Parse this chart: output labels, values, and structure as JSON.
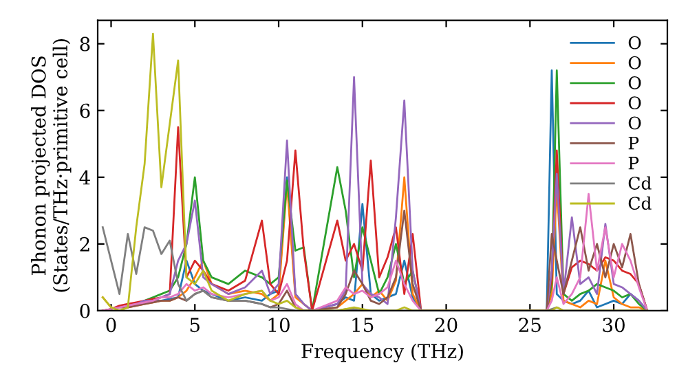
{
  "chart_data": {
    "type": "line",
    "xlabel": "Frequency (THz)",
    "ylabel": "Phonon projected DOS\n(States/THz·primitive cell)",
    "x": [
      -0.5,
      0,
      0.5,
      1,
      1.5,
      2,
      2.5,
      3,
      3.5,
      4,
      4.5,
      5,
      5.5,
      6,
      7,
      8,
      9,
      9.5,
      10,
      10.5,
      11,
      11.5,
      12,
      13.5,
      14,
      14.5,
      15,
      15.5,
      16,
      16.5,
      17,
      17.5,
      18,
      18.5,
      19,
      26,
      26.3,
      26.6,
      27,
      27.5,
      28,
      28.5,
      29,
      29.5,
      30,
      30.5,
      31,
      31.5,
      32
    ],
    "series": [
      {
        "name": "O",
        "color": "#1f77b4",
        "values": [
          null,
          null,
          null,
          null,
          null,
          0.25,
          0.3,
          0.3,
          0.35,
          0.4,
          1.5,
          0.8,
          0.6,
          0.5,
          0.3,
          0.4,
          0.3,
          0.5,
          0.6,
          4.0,
          0.5,
          0.2,
          0,
          0.2,
          0.4,
          0.3,
          3.2,
          0.5,
          0.3,
          0.4,
          0.5,
          1.5,
          0.4,
          0,
          0,
          0,
          7.2,
          0.5,
          0.3,
          0.2,
          0.3,
          0.6,
          0.1,
          0.2,
          0.3,
          0.2,
          0.5,
          0.3,
          0
        ]
      },
      {
        "name": "O",
        "color": "#ff7f0e",
        "values": [
          0.4,
          0.1,
          0,
          0.1,
          0.15,
          0.2,
          0.25,
          0.3,
          0.3,
          0.4,
          0.6,
          1.0,
          1.5,
          0.8,
          0.5,
          0.6,
          0.5,
          0.3,
          0.5,
          3.8,
          0.4,
          0.2,
          0,
          0.1,
          0.3,
          0.5,
          0.8,
          0.4,
          0.6,
          0.3,
          0.9,
          4.0,
          0.5,
          0,
          0,
          0,
          0.5,
          3.7,
          0.3,
          0.2,
          0.1,
          0.3,
          0.2,
          1.5,
          0.4,
          0.2,
          0.1,
          0.1,
          0
        ]
      },
      {
        "name": "O",
        "color": "#2ca02c",
        "values": [
          null,
          null,
          null,
          null,
          0.2,
          0.3,
          0.4,
          0.5,
          0.6,
          1.0,
          2.0,
          4.0,
          1.5,
          1.0,
          0.8,
          1.2,
          1.0,
          0.8,
          1.0,
          3.9,
          1.8,
          1.9,
          0,
          4.3,
          3.0,
          1.0,
          2.5,
          1.5,
          0.5,
          1.0,
          2.0,
          0.8,
          1.2,
          0,
          0,
          0,
          0.8,
          7.2,
          0.5,
          0.3,
          0.5,
          0.6,
          0.8,
          0.7,
          0.6,
          0.4,
          0.5,
          0.2,
          0
        ]
      },
      {
        "name": "O",
        "color": "#d62728",
        "values": [
          0,
          0.05,
          0.15,
          0.2,
          0.25,
          0.3,
          0.35,
          0.4,
          0.5,
          5.5,
          1.0,
          1.5,
          1.2,
          0.8,
          0.6,
          0.9,
          2.7,
          0.8,
          0.5,
          1.5,
          4.8,
          1.8,
          0,
          2.7,
          1.5,
          2.0,
          1.2,
          4.5,
          1.0,
          1.6,
          2.5,
          0.5,
          2.3,
          0,
          0,
          0,
          1.0,
          4.8,
          0.5,
          1.3,
          1.5,
          1.4,
          1.2,
          1.6,
          1.5,
          1.2,
          1.1,
          0.8,
          0
        ]
      },
      {
        "name": "O",
        "color": "#9467bd",
        "values": [
          null,
          null,
          null,
          0.15,
          0.2,
          0.3,
          0.3,
          0.4,
          0.5,
          1.5,
          2.0,
          3.3,
          1.0,
          0.8,
          0.5,
          0.7,
          1.2,
          0.5,
          0.8,
          5.1,
          0.5,
          0.2,
          0,
          0.2,
          0.6,
          7.0,
          0.8,
          0.5,
          0.4,
          0.2,
          2.8,
          6.3,
          1.2,
          0,
          0,
          0,
          1.2,
          4.1,
          0.5,
          2.8,
          0.8,
          1.0,
          0.5,
          2.6,
          0.8,
          0.7,
          0.5,
          0.3,
          0
        ]
      },
      {
        "name": "P",
        "color": "#8c564b",
        "values": [
          0,
          0.05,
          0.1,
          0.1,
          0.15,
          0.2,
          0.25,
          0.3,
          0.3,
          0.4,
          0.3,
          0.5,
          0.6,
          0.4,
          0.3,
          0.3,
          0.2,
          0.1,
          0.2,
          0.6,
          0.1,
          0,
          0,
          0.1,
          0.5,
          1.2,
          0.8,
          0.3,
          0.2,
          0.4,
          1.0,
          3.0,
          0.8,
          0,
          0,
          0,
          2.3,
          1.5,
          0.5,
          1.5,
          2.5,
          1.2,
          2.0,
          1.0,
          2.0,
          1.3,
          2.3,
          0.8,
          0
        ]
      },
      {
        "name": "P",
        "color": "#e377c2",
        "values": [
          0,
          0.05,
          0.1,
          0.15,
          0.2,
          0.25,
          0.3,
          0.4,
          0.4,
          0.5,
          0.8,
          0.6,
          0.7,
          0.5,
          0.4,
          0.5,
          0.6,
          0.3,
          0.4,
          0.8,
          0.2,
          0,
          0,
          0.3,
          0.7,
          0.5,
          0.6,
          0.4,
          0.5,
          0.7,
          1.5,
          0.8,
          0.3,
          0,
          0,
          0,
          0.3,
          1.0,
          0.2,
          0.5,
          1.0,
          3.5,
          1.2,
          2.5,
          1.0,
          2.0,
          1.5,
          0.7,
          0
        ]
      },
      {
        "name": "Cd",
        "color": "#7f7f7f",
        "values": [
          2.5,
          1.5,
          0.5,
          2.3,
          1.1,
          2.5,
          2.4,
          1.7,
          2.1,
          0.8,
          0.3,
          0.5,
          0.6,
          0.4,
          0.3,
          0.3,
          0.2,
          0.1,
          0.1,
          0.05,
          0,
          0,
          0,
          0,
          0.05,
          0.05,
          0,
          0,
          0,
          0,
          0,
          0,
          0,
          0,
          0,
          0,
          0.05,
          0.1,
          0,
          0,
          0,
          0,
          0,
          0,
          0,
          0,
          0,
          0,
          0
        ]
      },
      {
        "name": "Cd",
        "color": "#bcbd22",
        "values": [
          0.4,
          0.1,
          0,
          0.1,
          2.5,
          4.4,
          8.3,
          3.7,
          5.6,
          7.5,
          1.0,
          0.8,
          1.2,
          0.6,
          0.3,
          0.5,
          0.6,
          0.3,
          0.2,
          0.3,
          0.1,
          0,
          0,
          0,
          0.05,
          0.1,
          0.05,
          0,
          0,
          0,
          0,
          0.1,
          0,
          0,
          0,
          0,
          0,
          0.1,
          0,
          0,
          0,
          0,
          0,
          0,
          0,
          0,
          0,
          0,
          0
        ]
      }
    ],
    "xlim": [
      -0.8,
      33.2
    ],
    "ylim": [
      0,
      8.7
    ],
    "xticks": [
      0,
      5,
      10,
      15,
      20,
      25,
      30
    ],
    "yticks": [
      0,
      2,
      4,
      6,
      8
    ],
    "legend": "top right",
    "grid": false
  }
}
